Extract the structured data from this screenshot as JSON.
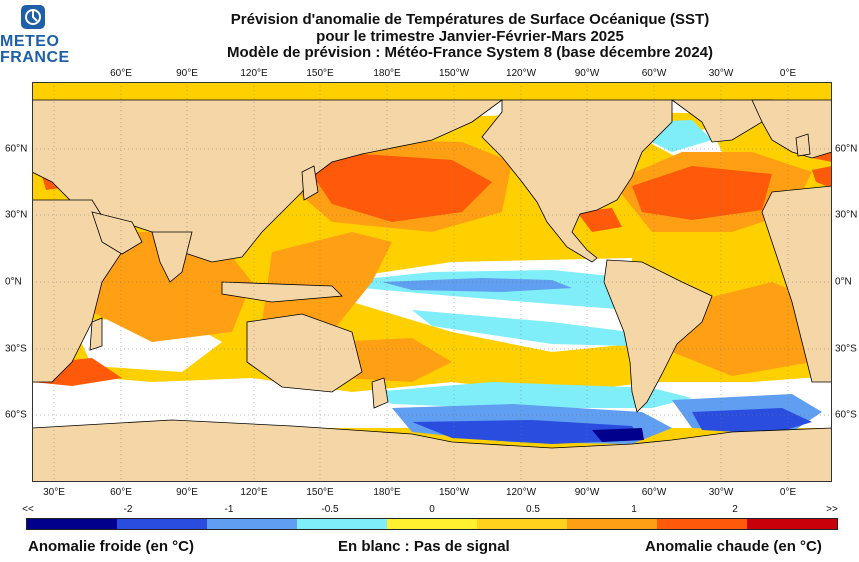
{
  "logo": {
    "line1": "METEO",
    "line2": "FRANCE"
  },
  "title": {
    "line1": "Prévision d'anomalie de Températures de Surface Océanique (SST)",
    "line2": "pour le trimestre Janvier-Février-Mars 2025",
    "line3": "Modèle de prévision : Météo-France System 8 (base décembre 2024)"
  },
  "top_lon_labels": [
    "60°E",
    "90°E",
    "120°E",
    "150°E",
    "180°E",
    "150°W",
    "120°W",
    "90°W",
    "60°W",
    "30°W",
    "0°E"
  ],
  "bottom_lon_labels": [
    "30°E",
    "60°E",
    "90°E",
    "120°E",
    "150°E",
    "180°E",
    "150°W",
    "120°W",
    "90°W",
    "60°W",
    "30°W",
    "0°E"
  ],
  "lat_labels": [
    "60°N",
    "30°N",
    "0°N",
    "30°S",
    "60°S"
  ],
  "colorbar": {
    "colors": [
      "#00008c",
      "#2a4de0",
      "#5f9ef0",
      "#7feef8",
      "#fff030",
      "#ffd21e",
      "#ffa014",
      "#ff5a0a",
      "#c8000a"
    ],
    "labels": [
      "<<",
      "-2",
      "-1",
      "-0.5",
      "0",
      "0.5",
      "1",
      "2",
      ">>"
    ]
  },
  "legend": {
    "cold": "Anomalie froide (en °C)",
    "neutral": "En blanc : Pas de signal",
    "warm": "Anomalie chaude (en °C)"
  },
  "map_colors": {
    "land": "#f5d6a6",
    "ocean_base": "#ffd000",
    "white": "#ffffff",
    "cyan": "#7feef8",
    "blue": "#5f9ef0",
    "darkblue": "#2a4de0",
    "navy": "#00008c",
    "orange": "#ffa014",
    "redorange": "#ff5a0a"
  }
}
